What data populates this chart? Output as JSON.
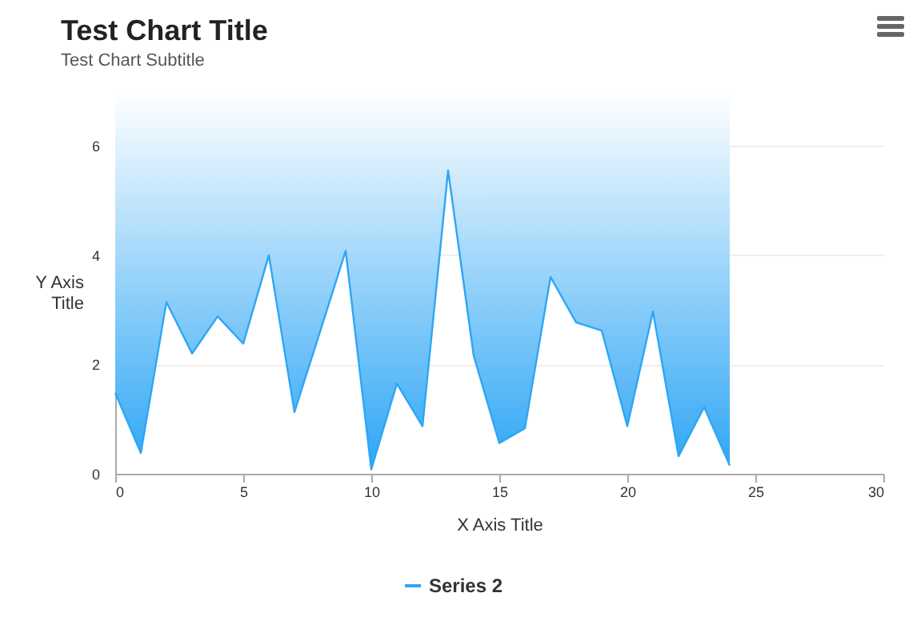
{
  "chart_data": {
    "type": "line",
    "title": "Test Chart Title",
    "subtitle": "Test Chart Subtitle",
    "xlabel": "X Axis Title",
    "ylabel": "Y Axis Title",
    "x": [
      0,
      1,
      2,
      3,
      4,
      5,
      6,
      7,
      8,
      9,
      10,
      11,
      12,
      13,
      14,
      15,
      16,
      17,
      18,
      19,
      20,
      21,
      22,
      23,
      24
    ],
    "series": [
      {
        "name": "Series 2",
        "color": "#2ea6f5",
        "values": [
          1.48,
          0.38,
          3.14,
          2.2,
          2.88,
          2.38,
          4.0,
          1.13,
          2.6,
          4.08,
          0.08,
          1.65,
          0.87,
          5.55,
          2.16,
          0.56,
          0.83,
          3.6,
          2.77,
          2.62,
          0.87,
          2.97,
          0.32,
          1.22,
          0.15
        ],
        "lower": [
          1.48,
          0.38,
          3.14,
          2.2,
          2.88,
          2.38,
          4.0,
          1.13,
          2.6,
          4.08,
          0.08,
          1.65,
          0.87,
          5.55,
          2.16,
          0.56,
          0.83,
          3.6,
          2.77,
          2.62,
          0.87,
          2.97,
          0.32,
          1.22,
          0.15
        ],
        "upper": [
          7,
          7,
          7,
          7,
          7,
          7,
          7,
          7,
          7,
          7,
          7,
          7,
          7,
          7,
          7,
          7,
          7,
          7,
          7,
          7,
          7,
          7,
          7,
          7,
          7
        ]
      }
    ],
    "xlim": [
      0,
      30
    ],
    "xticks": [
      0,
      5,
      10,
      15,
      20,
      25,
      30
    ],
    "ylim": [
      0,
      7
    ],
    "yticks": [
      0,
      2,
      4,
      6
    ],
    "grid": "y",
    "legend": "bottom"
  }
}
